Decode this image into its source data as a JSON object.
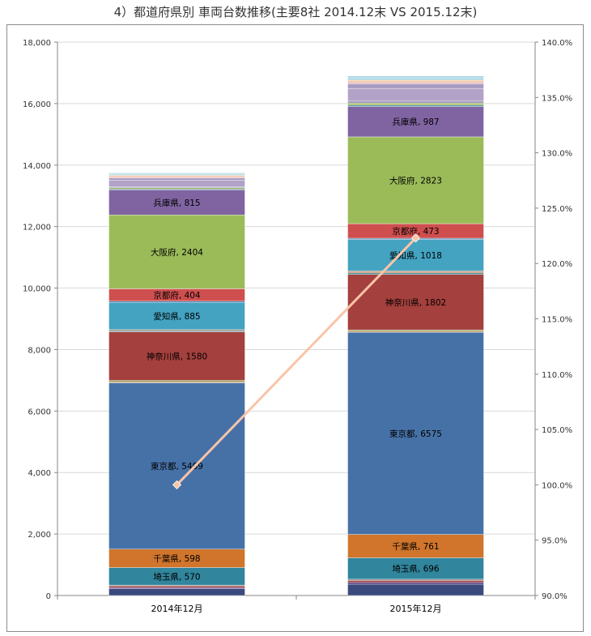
{
  "title": "4）都道府県別 車両台数推移(主要8社 2014.12末 VS 2015.12末)",
  "colors": {
    "base_dark": "#3b4a7c",
    "base_red": "#9b3c3c",
    "base_violet": "#5a3f7a",
    "thin_gray": "#8a8a8a",
    "saitama": "#31859c",
    "chiba": "#d0752b",
    "tokyo": "#4671a7",
    "thin_olive": "#7f8f3a",
    "thin_tan": "#c69c6d",
    "kanagawa": "#a4403d",
    "thin_teal": "#4f8fa0",
    "thin_rust": "#b76d3a",
    "aichi": "#43a3c1",
    "kyoto": "#cf4f4f",
    "osaka": "#9bbb59",
    "hyogo": "#8064a2",
    "thin_blue": "#4a7fb0",
    "thin_red2": "#c0504d",
    "thin_green2": "#9bbb59",
    "upper_lilac": "#b3a2c7",
    "upper_lilac2": "#a79bc2",
    "upper_pink": "#e6b9b8",
    "upper_yellow": "#fac090",
    "upper_lightblue": "#b7dde8",
    "upper_sky": "#93cddd",
    "pct_line": "#f9c4a8",
    "axis": "#868686",
    "grid": "#d9d9d9",
    "label": "#000000"
  },
  "chart_data": {
    "type": "bar",
    "stacked": true,
    "categories": [
      "2014年12月",
      "2015年12月"
    ],
    "series": [
      {
        "name": "",
        "color_key": "base_dark",
        "values": [
          220,
          370
        ]
      },
      {
        "name": "",
        "color_key": "base_violet",
        "values": [
          40,
          60
        ]
      },
      {
        "name": "",
        "color_key": "base_red",
        "values": [
          50,
          60
        ]
      },
      {
        "name": "",
        "color_key": "thin_gray",
        "values": [
          30,
          40
        ]
      },
      {
        "name": "埼玉県",
        "color_key": "saitama",
        "values": [
          570,
          696
        ]
      },
      {
        "name": "千葉県",
        "color_key": "chiba",
        "values": [
          598,
          761
        ]
      },
      {
        "name": "東京都",
        "color_key": "tokyo",
        "values": [
          5409,
          6575
        ]
      },
      {
        "name": "",
        "color_key": "thin_tan",
        "values": [
          40,
          40
        ]
      },
      {
        "name": "",
        "color_key": "thin_olive",
        "values": [
          40,
          40
        ]
      },
      {
        "name": "神奈川県",
        "color_key": "kanagawa",
        "values": [
          1580,
          1802
        ]
      },
      {
        "name": "",
        "color_key": "thin_teal",
        "values": [
          40,
          50
        ]
      },
      {
        "name": "",
        "color_key": "thin_rust",
        "values": [
          30,
          40
        ]
      },
      {
        "name": "",
        "color_key": "thin_gray",
        "values": [
          0,
          30
        ]
      },
      {
        "name": "愛知県",
        "color_key": "aichi",
        "values": [
          885,
          1018
        ]
      },
      {
        "name": "",
        "color_key": "thin_blue",
        "values": [
          40,
          40
        ]
      },
      {
        "name": "京都府",
        "color_key": "kyoto",
        "values": [
          404,
          473
        ]
      },
      {
        "name": "大阪府",
        "color_key": "osaka",
        "values": [
          2404,
          2823
        ]
      },
      {
        "name": "兵庫県",
        "color_key": "hyogo",
        "values": [
          815,
          987
        ]
      },
      {
        "name": "",
        "color_key": "thin_teal",
        "values": [
          30,
          50
        ]
      },
      {
        "name": "",
        "color_key": "thin_green2",
        "values": [
          40,
          60
        ]
      },
      {
        "name": "",
        "color_key": "upper_lilac2",
        "values": [
          40,
          80
        ]
      },
      {
        "name": "",
        "color_key": "upper_lilac",
        "values": [
          200,
          400
        ]
      },
      {
        "name": "",
        "color_key": "upper_lilac2",
        "values": [
          80,
          150
        ]
      },
      {
        "name": "",
        "color_key": "upper_pink",
        "values": [
          40,
          60
        ]
      },
      {
        "name": "",
        "color_key": "upper_yellow",
        "values": [
          40,
          50
        ]
      },
      {
        "name": "",
        "color_key": "upper_lightblue",
        "values": [
          60,
          90
        ]
      },
      {
        "name": "",
        "color_key": "upper_sky",
        "values": [
          20,
          50
        ]
      }
    ],
    "totals_approx": [
      14125,
      17268
    ],
    "growth_line": {
      "axis": "secondary",
      "values_pct": [
        100.0,
        122.3
      ]
    },
    "yaxis_left": {
      "min": 0,
      "max": 18000,
      "step": 2000,
      "tick_labels": [
        "0",
        "2,000",
        "4,000",
        "6,000",
        "8,000",
        "10,000",
        "12,000",
        "14,000",
        "16,000",
        "18,000"
      ]
    },
    "yaxis_right": {
      "min": 90,
      "max": 140,
      "step": 5,
      "tick_labels": [
        "90.0%",
        "95.0%",
        "100.0%",
        "105.0%",
        "110.0%",
        "115.0%",
        "120.0%",
        "125.0%",
        "130.0%",
        "135.0%",
        "140.0%"
      ]
    },
    "grid": "horizontal"
  }
}
